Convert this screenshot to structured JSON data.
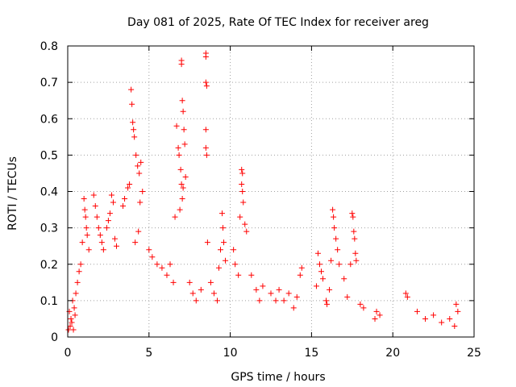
{
  "chart_data": {
    "type": "scatter",
    "title": "Day 081 of 2025, Rate Of TEC Index for receiver areg",
    "xlabel": "GPS time / hours",
    "ylabel": "ROTI / TECUs",
    "xlim": [
      0,
      25
    ],
    "ylim": [
      0,
      0.8
    ],
    "xticks": [
      "0",
      "5",
      "10",
      "15",
      "20",
      "25"
    ],
    "yticks": [
      "0",
      "0.1",
      "0.2",
      "0.3",
      "0.4",
      "0.5",
      "0.6",
      "0.7",
      "0.8"
    ],
    "grid": true,
    "marker": "+",
    "color": "#ff0000",
    "series": [
      {
        "name": "ROTI",
        "points": [
          [
            3.9,
            0.68
          ],
          [
            3.95,
            0.64
          ],
          [
            4.0,
            0.59
          ],
          [
            4.05,
            0.57
          ],
          [
            4.1,
            0.55
          ],
          [
            4.2,
            0.5
          ],
          [
            4.3,
            0.47
          ],
          [
            4.4,
            0.45
          ],
          [
            4.5,
            0.48
          ],
          [
            4.6,
            0.4
          ],
          [
            3.8,
            0.42
          ],
          [
            3.7,
            0.41
          ],
          [
            3.5,
            0.38
          ],
          [
            3.4,
            0.36
          ],
          [
            4.45,
            0.37
          ],
          [
            4.35,
            0.29
          ],
          [
            4.15,
            0.26
          ],
          [
            6.7,
            0.58
          ],
          [
            6.8,
            0.52
          ],
          [
            6.85,
            0.5
          ],
          [
            6.95,
            0.46
          ],
          [
            7.0,
            0.42
          ],
          [
            7.05,
            0.38
          ],
          [
            6.9,
            0.35
          ],
          [
            6.6,
            0.33
          ],
          [
            7.0,
            0.76
          ],
          [
            7.0,
            0.75
          ],
          [
            7.05,
            0.65
          ],
          [
            7.1,
            0.62
          ],
          [
            7.15,
            0.57
          ],
          [
            7.2,
            0.53
          ],
          [
            7.25,
            0.44
          ],
          [
            7.1,
            0.41
          ],
          [
            8.5,
            0.78
          ],
          [
            8.5,
            0.77
          ],
          [
            8.5,
            0.7
          ],
          [
            8.55,
            0.69
          ],
          [
            8.5,
            0.57
          ],
          [
            8.5,
            0.52
          ],
          [
            8.55,
            0.5
          ],
          [
            8.6,
            0.26
          ],
          [
            10.7,
            0.46
          ],
          [
            10.75,
            0.45
          ],
          [
            10.7,
            0.42
          ],
          [
            10.75,
            0.4
          ],
          [
            10.8,
            0.37
          ],
          [
            10.9,
            0.31
          ],
          [
            11.0,
            0.29
          ],
          [
            10.6,
            0.33
          ],
          [
            9.5,
            0.34
          ],
          [
            9.55,
            0.3
          ],
          [
            9.6,
            0.26
          ],
          [
            9.4,
            0.24
          ],
          [
            9.7,
            0.21
          ],
          [
            9.3,
            0.19
          ],
          [
            16.3,
            0.35
          ],
          [
            16.35,
            0.33
          ],
          [
            16.4,
            0.3
          ],
          [
            16.5,
            0.27
          ],
          [
            16.6,
            0.24
          ],
          [
            16.2,
            0.21
          ],
          [
            16.7,
            0.2
          ],
          [
            17.5,
            0.34
          ],
          [
            17.55,
            0.33
          ],
          [
            17.6,
            0.29
          ],
          [
            17.65,
            0.27
          ],
          [
            17.7,
            0.23
          ],
          [
            17.75,
            0.21
          ],
          [
            17.4,
            0.2
          ],
          [
            15.4,
            0.23
          ],
          [
            15.5,
            0.2
          ],
          [
            15.6,
            0.18
          ],
          [
            15.7,
            0.16
          ],
          [
            15.3,
            0.14
          ],
          [
            14.4,
            0.19
          ],
          [
            14.3,
            0.17
          ],
          [
            15.9,
            0.1
          ],
          [
            15.95,
            0.09
          ],
          [
            16.1,
            0.13
          ],
          [
            17.0,
            0.16
          ],
          [
            17.2,
            0.11
          ],
          [
            18.0,
            0.09
          ],
          [
            18.2,
            0.08
          ],
          [
            18.9,
            0.05
          ],
          [
            19.0,
            0.07
          ],
          [
            19.2,
            0.06
          ],
          [
            20.8,
            0.12
          ],
          [
            20.9,
            0.11
          ],
          [
            21.5,
            0.07
          ],
          [
            22.0,
            0.05
          ],
          [
            22.5,
            0.06
          ],
          [
            23.0,
            0.04
          ],
          [
            23.5,
            0.05
          ],
          [
            23.9,
            0.09
          ],
          [
            24.0,
            0.07
          ],
          [
            23.8,
            0.03
          ],
          [
            1.0,
            0.38
          ],
          [
            1.05,
            0.35
          ],
          [
            1.1,
            0.33
          ],
          [
            1.15,
            0.3
          ],
          [
            1.2,
            0.28
          ],
          [
            0.9,
            0.26
          ],
          [
            1.3,
            0.24
          ],
          [
            1.6,
            0.39
          ],
          [
            1.7,
            0.36
          ],
          [
            1.8,
            0.33
          ],
          [
            1.9,
            0.3
          ],
          [
            2.0,
            0.28
          ],
          [
            2.1,
            0.26
          ],
          [
            2.2,
            0.24
          ],
          [
            2.7,
            0.39
          ],
          [
            2.8,
            0.37
          ],
          [
            2.6,
            0.34
          ],
          [
            2.5,
            0.32
          ],
          [
            2.4,
            0.3
          ],
          [
            2.9,
            0.27
          ],
          [
            3.0,
            0.25
          ],
          [
            5.0,
            0.24
          ],
          [
            5.2,
            0.22
          ],
          [
            5.5,
            0.2
          ],
          [
            5.8,
            0.19
          ],
          [
            6.1,
            0.17
          ],
          [
            6.3,
            0.2
          ],
          [
            6.5,
            0.15
          ],
          [
            7.5,
            0.15
          ],
          [
            7.7,
            0.12
          ],
          [
            7.9,
            0.1
          ],
          [
            8.2,
            0.13
          ],
          [
            8.8,
            0.15
          ],
          [
            9.0,
            0.12
          ],
          [
            9.2,
            0.1
          ],
          [
            10.2,
            0.24
          ],
          [
            10.3,
            0.2
          ],
          [
            10.5,
            0.17
          ],
          [
            11.3,
            0.17
          ],
          [
            11.6,
            0.13
          ],
          [
            11.8,
            0.1
          ],
          [
            12.0,
            0.14
          ],
          [
            12.5,
            0.12
          ],
          [
            12.8,
            0.1
          ],
          [
            13.0,
            0.13
          ],
          [
            13.3,
            0.1
          ],
          [
            13.6,
            0.12
          ],
          [
            13.9,
            0.08
          ],
          [
            14.1,
            0.11
          ],
          [
            0.1,
            0.07
          ],
          [
            0.2,
            0.05
          ],
          [
            0.3,
            0.1
          ],
          [
            0.4,
            0.08
          ],
          [
            0.5,
            0.12
          ],
          [
            0.6,
            0.15
          ],
          [
            0.7,
            0.18
          ],
          [
            0.8,
            0.2
          ],
          [
            0.05,
            0.02
          ],
          [
            0.15,
            0.03
          ],
          [
            0.25,
            0.04
          ],
          [
            0.35,
            0.02
          ],
          [
            0.45,
            0.06
          ]
        ]
      }
    ]
  }
}
